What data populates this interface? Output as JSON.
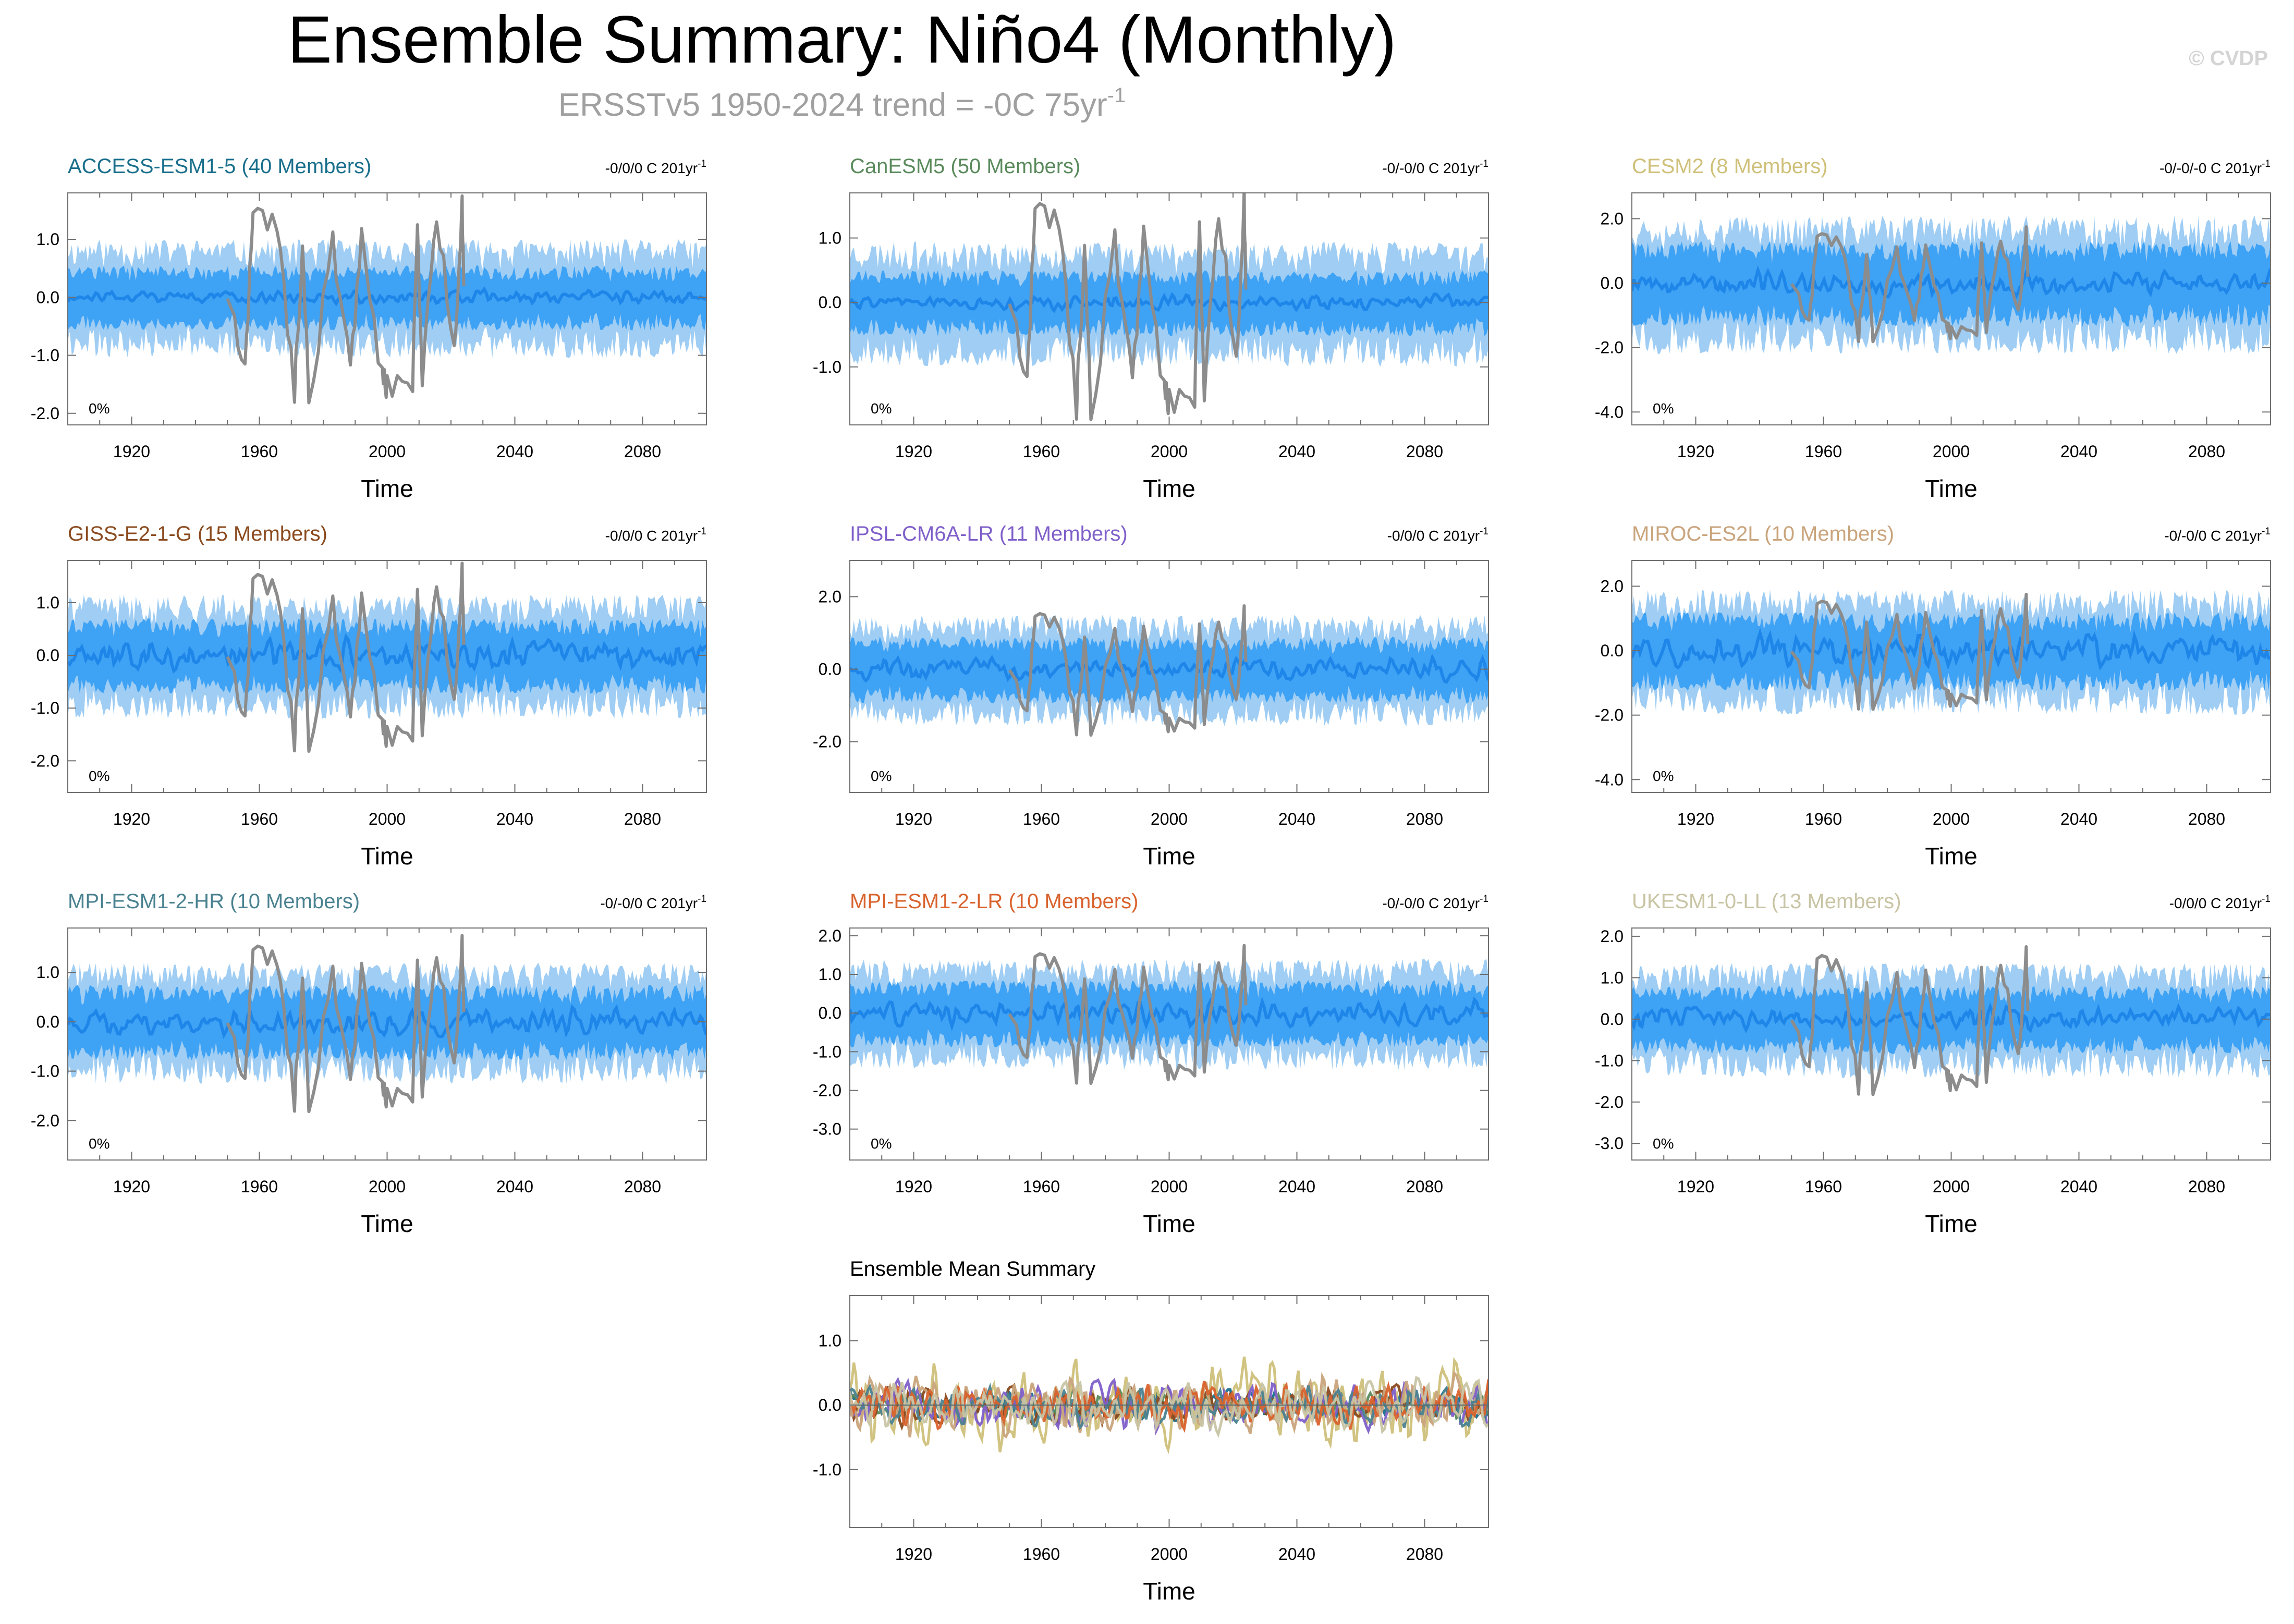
{
  "figure": {
    "title": "Ensemble Summary: Niño4 (Monthly)",
    "subtitle_prefix": "ERSSTv5 1950-2024 trend = -0C 75yr",
    "subtitle_exponent": "-1",
    "watermark": "© CVDP"
  },
  "colors": {
    "spread_outer": "#9fcdf3",
    "spread_inner": "#3ea2f5",
    "ensemble_mean": "#1e86e8",
    "observations": "#8c8c8c",
    "frame": "#6e6e6e"
  },
  "chart_data": [
    {
      "type": "line",
      "title": "ACCESS-ESM1-5 (40 Members)",
      "title_color": "#1a6f8c",
      "trend": "-0/0/0 C 201yr",
      "trend_exponent": "-1",
      "percent_label": "0%",
      "xlabel": "Time",
      "xlim": [
        1900,
        2100
      ],
      "xticks": [
        1920,
        1960,
        2000,
        2040,
        2080
      ],
      "ylim": [
        -2.2,
        1.8
      ],
      "yticks": [
        1.0,
        0.0,
        -1.0,
        -2.0
      ],
      "ytick_labels": [
        "1.0",
        "0.0",
        "-1.0",
        "-2.0"
      ],
      "spread_outer": 1.0,
      "spread_inner": 0.55,
      "mean_amplitude": 0.14,
      "seed": 11
    },
    {
      "type": "line",
      "title": "CanESM5 (50 Members)",
      "title_color": "#5a8a5c",
      "trend": "-0/-0/0 C 201yr",
      "trend_exponent": "-1",
      "percent_label": "0%",
      "xlabel": "Time",
      "xlim": [
        1900,
        2100
      ],
      "xticks": [
        1920,
        1960,
        2000,
        2040,
        2080
      ],
      "ylim": [
        -1.9,
        1.7
      ],
      "yticks": [
        1.0,
        0.0,
        -1.0
      ],
      "ytick_labels": [
        "1.0",
        "0.0",
        "-1.0"
      ],
      "spread_outer": 0.95,
      "spread_inner": 0.5,
      "mean_amplitude": 0.13,
      "seed": 23
    },
    {
      "type": "line",
      "title": "CESM2 (8 Members)",
      "title_color": "#cfc07a",
      "trend": "-0/-0/-0 C 201yr",
      "trend_exponent": "-1",
      "percent_label": "0%",
      "xlabel": "Time",
      "xlim": [
        1900,
        2100
      ],
      "xticks": [
        1920,
        1960,
        2000,
        2040,
        2080
      ],
      "ylim": [
        -4.4,
        2.8
      ],
      "yticks": [
        2.0,
        0.0,
        -2.0,
        -4.0
      ],
      "ytick_labels": [
        "2.0",
        "0.0",
        "-2.0",
        "-4.0"
      ],
      "spread_outer": 2.1,
      "spread_inner": 1.3,
      "mean_amplitude": 0.45,
      "seed": 37
    },
    {
      "type": "line",
      "title": "GISS-E2-1-G (15 Members)",
      "title_color": "#8a4a1e",
      "trend": "-0/0/0 C 201yr",
      "trend_exponent": "-1",
      "percent_label": "0%",
      "xlabel": "Time",
      "xlim": [
        1900,
        2100
      ],
      "xticks": [
        1920,
        1960,
        2000,
        2040,
        2080
      ],
      "ylim": [
        -2.6,
        1.8
      ],
      "yticks": [
        1.0,
        0.0,
        -1.0,
        -2.0
      ],
      "ytick_labels": [
        "1.0",
        "0.0",
        "-1.0",
        "-2.0"
      ],
      "spread_outer": 1.15,
      "spread_inner": 0.7,
      "mean_amplitude": 0.35,
      "seed": 41
    },
    {
      "type": "line",
      "title": "IPSL-CM6A-LR (11 Members)",
      "title_color": "#7f5fc9",
      "trend": "-0/0/0 C 201yr",
      "trend_exponent": "-1",
      "percent_label": "0%",
      "xlabel": "Time",
      "xlim": [
        1900,
        2100
      ],
      "xticks": [
        1920,
        1960,
        2000,
        2040,
        2080
      ],
      "ylim": [
        -3.4,
        3.0
      ],
      "yticks": [
        2.0,
        0.0,
        -2.0
      ],
      "ytick_labels": [
        "2.0",
        "0.0",
        "-2.0"
      ],
      "spread_outer": 1.5,
      "spread_inner": 0.9,
      "mean_amplitude": 0.35,
      "seed": 53
    },
    {
      "type": "line",
      "title": "MIROC-ES2L (10 Members)",
      "title_color": "#c9a47c",
      "trend": "-0/-0/0 C 201yr",
      "trend_exponent": "-1",
      "percent_label": "0%",
      "xlabel": "Time",
      "xlim": [
        1900,
        2100
      ],
      "xticks": [
        1920,
        1960,
        2000,
        2040,
        2080
      ],
      "ylim": [
        -4.4,
        2.8
      ],
      "yticks": [
        2.0,
        0.0,
        -2.0,
        -4.0
      ],
      "ytick_labels": [
        "2.0",
        "0.0",
        "-2.0",
        "-4.0"
      ],
      "spread_outer": 1.9,
      "spread_inner": 1.2,
      "mean_amplitude": 0.55,
      "seed": 67
    },
    {
      "type": "line",
      "title": "MPI-ESM1-2-HR (10 Members)",
      "title_color": "#4a8290",
      "trend": "-0/-0/0 C 201yr",
      "trend_exponent": "-1",
      "percent_label": "0%",
      "xlabel": "Time",
      "xlim": [
        1900,
        2100
      ],
      "xticks": [
        1920,
        1960,
        2000,
        2040,
        2080
      ],
      "ylim": [
        -2.8,
        1.9
      ],
      "yticks": [
        1.0,
        0.0,
        -1.0,
        -2.0
      ],
      "ytick_labels": [
        "1.0",
        "0.0",
        "-1.0",
        "-2.0"
      ],
      "spread_outer": 1.2,
      "spread_inner": 0.75,
      "mean_amplitude": 0.3,
      "seed": 71
    },
    {
      "type": "line",
      "title": "MPI-ESM1-2-LR (10 Members)",
      "title_color": "#d9632e",
      "trend": "-0/-0/0 C 201yr",
      "trend_exponent": "-1",
      "percent_label": "0%",
      "xlabel": "Time",
      "xlim": [
        1900,
        2100
      ],
      "xticks": [
        1920,
        1960,
        2000,
        2040,
        2080
      ],
      "ylim": [
        -3.8,
        2.2
      ],
      "yticks": [
        2.0,
        1.0,
        0.0,
        -1.0,
        -2.0,
        -3.0
      ],
      "ytick_labels": [
        "2.0",
        "1.0",
        "0.0",
        "-1.0",
        "-2.0",
        "-3.0"
      ],
      "spread_outer": 1.4,
      "spread_inner": 0.85,
      "mean_amplitude": 0.35,
      "seed": 83
    },
    {
      "type": "line",
      "title": "UKESM1-0-LL (13 Members)",
      "title_color": "#c8c4a4",
      "trend": "-0/0/0 C 201yr",
      "trend_exponent": "-1",
      "percent_label": "0%",
      "xlabel": "Time",
      "xlim": [
        1900,
        2100
      ],
      "xticks": [
        1920,
        1960,
        2000,
        2040,
        2080
      ],
      "ylim": [
        -3.4,
        2.2
      ],
      "yticks": [
        2.0,
        1.0,
        0.0,
        -1.0,
        -2.0,
        -3.0
      ],
      "ytick_labels": [
        "2.0",
        "1.0",
        "0.0",
        "-1.0",
        "-2.0",
        "-3.0"
      ],
      "spread_outer": 1.35,
      "spread_inner": 0.8,
      "mean_amplitude": 0.3,
      "seed": 97
    },
    {
      "type": "line",
      "title": "Ensemble Mean Summary",
      "title_color": "#000000",
      "xlabel": "Time",
      "xlim": [
        1900,
        2100
      ],
      "xticks": [
        1920,
        1960,
        2000,
        2040,
        2080
      ],
      "ylim": [
        -1.9,
        1.7
      ],
      "yticks": [
        1.0,
        0.0,
        -1.0
      ],
      "ytick_labels": [
        "1.0",
        "0.0",
        "-1.0"
      ],
      "series": [
        {
          "name": "ACCESS-ESM1-5",
          "color": "#1a6f8c",
          "amplitude": 0.25
        },
        {
          "name": "CanESM5",
          "color": "#5a8a5c",
          "amplitude": 0.25
        },
        {
          "name": "CESM2",
          "color": "#cfc07a",
          "amplitude": 0.75
        },
        {
          "name": "GISS-E2-1-G",
          "color": "#8a4a1e",
          "amplitude": 0.35
        },
        {
          "name": "IPSL-CM6A-LR",
          "color": "#7f5fc9",
          "amplitude": 0.4
        },
        {
          "name": "MIROC-ES2L",
          "color": "#c9a47c",
          "amplitude": 0.5
        },
        {
          "name": "MPI-ESM1-2-HR",
          "color": "#4a8290",
          "amplitude": 0.35
        },
        {
          "name": "MPI-ESM1-2-LR",
          "color": "#d9632e",
          "amplitude": 0.4
        },
        {
          "name": "UKESM1-0-LL",
          "color": "#c8c4a4",
          "amplitude": 0.45
        }
      ]
    }
  ],
  "observations": {
    "name": "ERSSTv5",
    "period": [
      1950,
      2024
    ],
    "peak_values": [
      {
        "year": 1955.5,
        "value": -1.2
      },
      {
        "year": 1958.0,
        "value": 1.4
      },
      {
        "year": 1965.5,
        "value": 1.3
      },
      {
        "year": 1971.0,
        "value": -1.6
      },
      {
        "year": 1973.5,
        "value": 0.9
      },
      {
        "year": 1975.5,
        "value": -1.8
      },
      {
        "year": 1983.0,
        "value": 1.0
      },
      {
        "year": 1988.5,
        "value": -1.3
      },
      {
        "year": 1992.0,
        "value": 1.1
      },
      {
        "year": 1998.5,
        "value": -1.4
      },
      {
        "year": 2000.0,
        "value": -1.5
      },
      {
        "year": 2008.0,
        "value": -1.5
      },
      {
        "year": 2009.5,
        "value": 1.2
      },
      {
        "year": 2011.0,
        "value": -1.4
      },
      {
        "year": 2015.5,
        "value": 1.5
      },
      {
        "year": 2021.0,
        "value": -1.0
      },
      {
        "year": 2023.5,
        "value": 1.5
      }
    ]
  }
}
